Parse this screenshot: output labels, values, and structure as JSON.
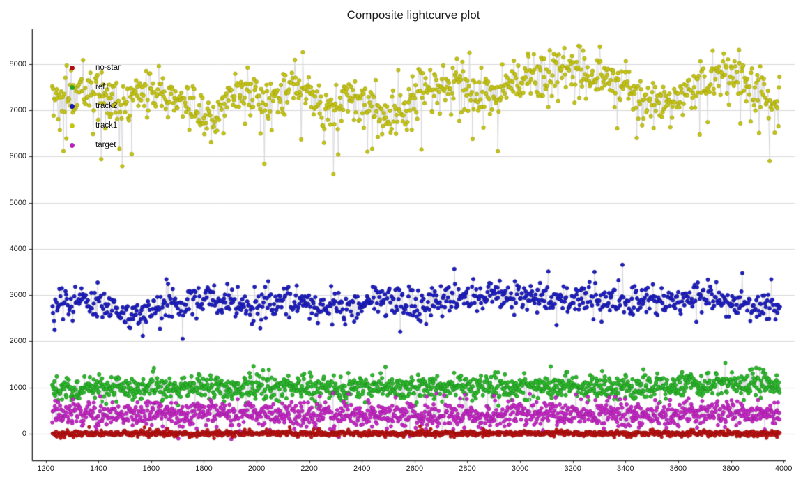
{
  "title": "Composite lightcurve plot",
  "legend": {
    "position": "upper-left-inside",
    "items": [
      {
        "label": "no-star",
        "color": "#b01010"
      },
      {
        "label": "ref1",
        "color": "#2aa52a"
      },
      {
        "label": "track2",
        "color": "#1818b8"
      },
      {
        "label": "track1",
        "color": "#c5c517"
      },
      {
        "label": "target",
        "color": "#bb22bb"
      }
    ]
  },
  "chart_data": {
    "type": "scatter",
    "title": "Composite lightcurve plot",
    "xlabel": "",
    "ylabel": "",
    "xlim": [
      1148,
      4042
    ],
    "ylim": [
      -575,
      8755
    ],
    "x_ticks": [
      1200,
      1400,
      1600,
      1800,
      2000,
      2200,
      2400,
      2600,
      2800,
      3000,
      3200,
      3400,
      3600,
      3800,
      4000
    ],
    "y_ticks": [
      0,
      1000,
      2000,
      3000,
      4000,
      5000,
      6000,
      7000,
      8000
    ],
    "grid": "horizontal",
    "grid_color": "#d9d9d9",
    "axis_color": "#2a2a2a",
    "connector_color": "#d9d9de",
    "background": "#ffffff",
    "seed": 7,
    "x_start": 1225,
    "x_end": 3985,
    "series": [
      {
        "name": "track1",
        "color": "#c5c517",
        "edge_color": "#a3a30f",
        "marker_radius": 2.7,
        "n": 1000,
        "noise_sd": 260,
        "dip_chance": 0.035,
        "dip_range": [
          300,
          1300
        ],
        "spike_chance": 0.01,
        "spike_range": [
          250,
          550
        ],
        "trend": [
          [
            1225,
            7250
          ],
          [
            1320,
            7400
          ],
          [
            1420,
            7450
          ],
          [
            1490,
            7050
          ],
          [
            1570,
            7400
          ],
          [
            1660,
            7350
          ],
          [
            1760,
            7000
          ],
          [
            1830,
            6750
          ],
          [
            1910,
            7400
          ],
          [
            2010,
            7200
          ],
          [
            2110,
            7450
          ],
          [
            2190,
            7550
          ],
          [
            2270,
            6950
          ],
          [
            2360,
            7300
          ],
          [
            2440,
            7000
          ],
          [
            2530,
            6850
          ],
          [
            2620,
            7500
          ],
          [
            2700,
            7450
          ],
          [
            2780,
            7650
          ],
          [
            2860,
            7250
          ],
          [
            2960,
            7600
          ],
          [
            3060,
            7800
          ],
          [
            3160,
            7900
          ],
          [
            3260,
            7800
          ],
          [
            3360,
            7650
          ],
          [
            3460,
            7300
          ],
          [
            3560,
            7100
          ],
          [
            3660,
            7500
          ],
          [
            3760,
            7850
          ],
          [
            3860,
            7650
          ],
          [
            3930,
            7200
          ],
          [
            3985,
            6950
          ]
        ]
      },
      {
        "name": "track2",
        "color": "#2020c8",
        "edge_color": "#14148c",
        "marker_radius": 2.6,
        "n": 900,
        "noise_sd": 165,
        "dip_chance": 0.02,
        "dip_range": [
          150,
          500
        ],
        "spike_chance": 0.03,
        "spike_range": [
          150,
          600
        ],
        "trend": [
          [
            1225,
            2700
          ],
          [
            1330,
            2880
          ],
          [
            1430,
            2750
          ],
          [
            1500,
            2570
          ],
          [
            1620,
            2720
          ],
          [
            1730,
            2820
          ],
          [
            1830,
            2880
          ],
          [
            1930,
            2800
          ],
          [
            2030,
            2760
          ],
          [
            2160,
            2820
          ],
          [
            2260,
            2680
          ],
          [
            2400,
            2800
          ],
          [
            2520,
            2890
          ],
          [
            2620,
            2800
          ],
          [
            2720,
            2900
          ],
          [
            2820,
            2950
          ],
          [
            2960,
            3000
          ],
          [
            3100,
            2900
          ],
          [
            3210,
            2960
          ],
          [
            3310,
            2900
          ],
          [
            3410,
            2860
          ],
          [
            3510,
            2910
          ],
          [
            3610,
            2820
          ],
          [
            3710,
            2950
          ],
          [
            3810,
            2900
          ],
          [
            3910,
            2760
          ],
          [
            3985,
            2720
          ]
        ]
      },
      {
        "name": "ref1",
        "color": "#2ebc2e",
        "edge_color": "#1d8a1d",
        "marker_radius": 2.6,
        "n": 1300,
        "noise_sd": 135,
        "dip_chance": 0.0,
        "dip_range": [
          0,
          0
        ],
        "spike_chance": 0.03,
        "spike_range": [
          100,
          350
        ],
        "trend": [
          [
            1225,
            950
          ],
          [
            1500,
            980
          ],
          [
            1800,
            1000
          ],
          [
            2200,
            980
          ],
          [
            2600,
            1010
          ],
          [
            3000,
            1000
          ],
          [
            3400,
            1000
          ],
          [
            3700,
            1070
          ],
          [
            3985,
            1110
          ]
        ]
      },
      {
        "name": "target",
        "color": "#cc29cc",
        "edge_color": "#961d96",
        "marker_radius": 2.5,
        "n": 1300,
        "noise_sd": 140,
        "dip_chance": 0.01,
        "dip_range": [
          200,
          450
        ],
        "spike_chance": 0.02,
        "spike_range": [
          150,
          350
        ],
        "trend": [
          [
            1225,
            420
          ],
          [
            1800,
            430
          ],
          [
            2400,
            410
          ],
          [
            3000,
            430
          ],
          [
            3600,
            420
          ],
          [
            3985,
            450
          ]
        ]
      },
      {
        "name": "no-star",
        "color": "#cc1414",
        "edge_color": "#8f0e0e",
        "marker_radius": 2.3,
        "n": 1300,
        "noise_sd": 30,
        "dip_chance": 0.005,
        "dip_range": [
          40,
          90
        ],
        "spike_chance": 0.01,
        "spike_range": [
          50,
          110
        ],
        "trend": [
          [
            1225,
            0
          ],
          [
            3985,
            8
          ]
        ]
      }
    ]
  }
}
